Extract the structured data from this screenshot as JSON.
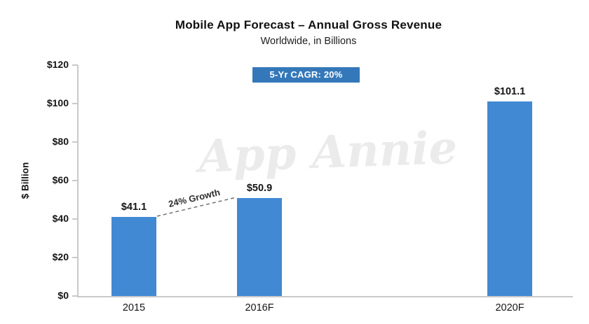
{
  "chart_data": {
    "type": "bar",
    "title": "Mobile App Forecast – Annual Gross Revenue",
    "subtitle": "Worldwide, in Billions",
    "ylabel": "$ Billion",
    "xlabel": "",
    "categories": [
      "2015",
      "2016F",
      "2020F"
    ],
    "values": [
      41.1,
      50.9,
      101.1
    ],
    "value_labels": [
      "$41.1",
      "$50.9",
      "$101.1"
    ],
    "ylim": [
      0,
      120
    ],
    "ytick_step": 20,
    "ytick_labels": [
      "$0",
      "$20",
      "$40",
      "$60",
      "$80",
      "$100",
      "$120"
    ],
    "grid": false,
    "legend": "none",
    "annotations": {
      "cagr_badge": "5-Yr CAGR: 20%",
      "growth_label": "24% Growth",
      "watermark": "App Annie"
    },
    "colors": {
      "bar": "#4189d3",
      "badge_bg": "#3478ba",
      "badge_text": "#ffffff",
      "axis": "#c9c9c9",
      "text": "#161616",
      "dashed_line": "#6a6a6a",
      "watermark": "#ebebeb"
    }
  }
}
